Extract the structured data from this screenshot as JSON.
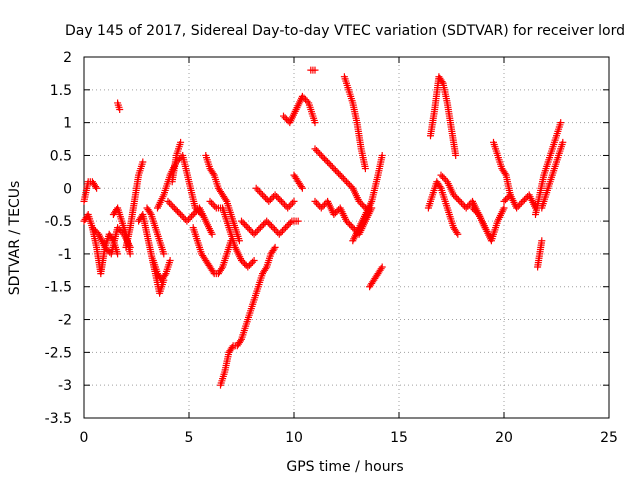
{
  "chart_data": {
    "type": "scatter",
    "title": "Day 145 of 2017, Sidereal Day-to-day VTEC variation (SDTVAR) for receiver lord",
    "xlabel": "GPS time / hours",
    "ylabel": "SDTVAR / TECUs",
    "xlim": [
      0,
      25
    ],
    "ylim": [
      -3.5,
      2
    ],
    "xticks": [
      0,
      5,
      10,
      15,
      20,
      25
    ],
    "xtick_labels": [
      "0",
      "5",
      "10",
      "15",
      "20",
      "25"
    ],
    "yticks": [
      -3.5,
      -3,
      -2.5,
      -2,
      -1.5,
      -1,
      -0.5,
      0,
      0.5,
      1,
      1.5,
      2
    ],
    "ytick_labels": [
      "-3.5",
      "-3",
      "-2.5",
      "-2",
      "-1.5",
      "-1",
      "-0.5",
      "0",
      "0.5",
      "1",
      "1.5",
      "2"
    ],
    "grid": true,
    "marker": "plus",
    "color": "#ff0000",
    "series": [
      {
        "name": "s1",
        "x": [
          0,
          0.2,
          0.4,
          0.6,
          0.8,
          1.0,
          1.2,
          1.4,
          1.6
        ],
        "y": [
          -0.5,
          -0.4,
          -0.6,
          -0.9,
          -1.3,
          -0.9,
          -0.7,
          -0.8,
          -1.0
        ]
      },
      {
        "name": "s2",
        "x": [
          0,
          0.2,
          0.4,
          0.6
        ],
        "y": [
          -0.2,
          0.1,
          0.1,
          0.0
        ]
      },
      {
        "name": "s3",
        "x": [
          0.4,
          0.7,
          1.0,
          1.3,
          1.6,
          1.9,
          2.2
        ],
        "y": [
          -0.6,
          -0.7,
          -0.9,
          -1.0,
          -0.6,
          -0.7,
          -0.9
        ]
      },
      {
        "name": "s4",
        "x": [
          1.4,
          1.6,
          1.8,
          2.0,
          2.2
        ],
        "y": [
          -0.4,
          -0.3,
          -0.5,
          -0.7,
          -1.0
        ]
      },
      {
        "name": "s5",
        "x": [
          1.6,
          1.7
        ],
        "y": [
          1.3,
          1.2
        ]
      },
      {
        "name": "s6",
        "x": [
          2.0,
          2.2,
          2.4,
          2.6,
          2.8
        ],
        "y": [
          -0.9,
          -0.6,
          -0.2,
          0.2,
          0.4
        ]
      },
      {
        "name": "s7",
        "x": [
          2.6,
          2.8,
          3.0,
          3.2,
          3.4,
          3.6,
          3.8
        ],
        "y": [
          -0.5,
          -0.4,
          -0.7,
          -1.0,
          -1.3,
          -1.6,
          -1.4
        ]
      },
      {
        "name": "s8",
        "x": [
          3.0,
          3.2,
          3.4,
          3.6,
          3.8
        ],
        "y": [
          -0.3,
          -0.4,
          -0.6,
          -0.8,
          -1.0
        ]
      },
      {
        "name": "s9",
        "x": [
          3.3,
          3.5,
          3.7,
          3.9,
          4.1
        ],
        "y": [
          -1.1,
          -1.3,
          -1.4,
          -1.3,
          -1.1
        ]
      },
      {
        "name": "s10",
        "x": [
          3.5,
          3.8,
          4.1,
          4.4,
          4.7,
          5.0,
          5.3,
          5.6
        ],
        "y": [
          -0.3,
          -0.1,
          0.2,
          0.4,
          0.5,
          0.1,
          -0.3,
          -0.4
        ]
      },
      {
        "name": "s11",
        "x": [
          4.0,
          4.3,
          4.6,
          4.9,
          5.2,
          5.5,
          5.8,
          6.1
        ],
        "y": [
          -0.2,
          -0.3,
          -0.4,
          -0.5,
          -0.4,
          -0.3,
          -0.5,
          -0.7
        ]
      },
      {
        "name": "s12",
        "x": [
          4.2,
          4.4,
          4.6
        ],
        "y": [
          0.1,
          0.5,
          0.7
        ]
      },
      {
        "name": "s13",
        "x": [
          5.2,
          5.4,
          5.6,
          5.8,
          6.0,
          6.2,
          6.4,
          6.6,
          6.8,
          7.0
        ],
        "y": [
          -0.6,
          -0.8,
          -1.0,
          -1.1,
          -1.2,
          -1.3,
          -1.3,
          -1.2,
          -1.0,
          -0.8
        ]
      },
      {
        "name": "s14",
        "x": [
          5.8,
          6.0,
          6.2,
          6.4,
          6.6,
          6.8,
          7.0,
          7.2,
          7.4
        ],
        "y": [
          0.5,
          0.3,
          0.2,
          0.0,
          -0.1,
          -0.2,
          -0.4,
          -0.6,
          -0.8
        ]
      },
      {
        "name": "s15",
        "x": [
          6.0,
          6.3,
          6.6,
          6.9,
          7.2,
          7.5,
          7.8,
          8.1
        ],
        "y": [
          -0.2,
          -0.3,
          -0.3,
          -0.6,
          -0.9,
          -1.1,
          -1.2,
          -1.1
        ]
      },
      {
        "name": "s16",
        "x": [
          6.5,
          6.7,
          6.9,
          7.1,
          7.3,
          7.5,
          7.7,
          7.9,
          8.1,
          8.3,
          8.5,
          8.7,
          8.9,
          9.1
        ],
        "y": [
          -3.0,
          -2.8,
          -2.5,
          -2.4,
          -2.4,
          -2.3,
          -2.1,
          -1.9,
          -1.7,
          -1.5,
          -1.3,
          -1.2,
          -1.0,
          -0.9
        ]
      },
      {
        "name": "s17",
        "x": [
          7.5,
          7.8,
          8.1,
          8.4,
          8.7,
          9.0,
          9.3,
          9.6,
          9.9,
          10.2
        ],
        "y": [
          -0.5,
          -0.6,
          -0.7,
          -0.6,
          -0.5,
          -0.6,
          -0.7,
          -0.6,
          -0.5,
          -0.5
        ]
      },
      {
        "name": "s18",
        "x": [
          8.2,
          8.5,
          8.8,
          9.1,
          9.4,
          9.7,
          10.0
        ],
        "y": [
          0.0,
          -0.1,
          -0.2,
          -0.1,
          -0.2,
          -0.3,
          -0.2
        ]
      },
      {
        "name": "s19",
        "x": [
          9.5,
          9.8,
          10.1,
          10.4,
          10.7,
          11.0
        ],
        "y": [
          1.1,
          1.0,
          1.2,
          1.4,
          1.3,
          1.0
        ]
      },
      {
        "name": "s20",
        "x": [
          10.0,
          10.2,
          10.4
        ],
        "y": [
          0.2,
          0.1,
          0.0
        ]
      },
      {
        "name": "s21",
        "x": [
          10.8,
          11.0
        ],
        "y": [
          1.8,
          1.8
        ]
      },
      {
        "name": "s22",
        "x": [
          11.0,
          11.3,
          11.6,
          11.9,
          12.2,
          12.5,
          12.8,
          13.1,
          13.4
        ],
        "y": [
          0.6,
          0.5,
          0.4,
          0.3,
          0.2,
          0.1,
          0.0,
          -0.2,
          -0.3
        ]
      },
      {
        "name": "s23",
        "x": [
          11.0,
          11.3,
          11.6,
          11.9,
          12.2,
          12.5,
          12.8,
          13.1,
          13.4,
          13.7
        ],
        "y": [
          -0.2,
          -0.3,
          -0.2,
          -0.4,
          -0.3,
          -0.5,
          -0.6,
          -0.7,
          -0.5,
          -0.3
        ]
      },
      {
        "name": "s24",
        "x": [
          12.4,
          12.6,
          12.8,
          13.0,
          13.2,
          13.4
        ],
        "y": [
          1.7,
          1.5,
          1.3,
          1.0,
          0.6,
          0.3
        ]
      },
      {
        "name": "s25",
        "x": [
          12.8,
          13.1,
          13.4,
          13.7,
          14.0,
          14.2
        ],
        "y": [
          -0.8,
          -0.6,
          -0.4,
          -0.2,
          0.2,
          0.5
        ]
      },
      {
        "name": "s26",
        "x": [
          13.6,
          13.8,
          14.0,
          14.2
        ],
        "y": [
          -1.5,
          -1.4,
          -1.3,
          -1.2
        ]
      },
      {
        "name": "s27",
        "x": [
          16.5,
          16.7,
          16.9,
          17.1,
          17.3,
          17.5,
          17.7
        ],
        "y": [
          0.8,
          1.2,
          1.7,
          1.6,
          1.3,
          0.9,
          0.5
        ]
      },
      {
        "name": "s28",
        "x": [
          16.4,
          16.6,
          16.8,
          17.0,
          17.2,
          17.4,
          17.6,
          17.8
        ],
        "y": [
          -0.3,
          -0.1,
          0.1,
          0.0,
          -0.2,
          -0.4,
          -0.6,
          -0.7
        ]
      },
      {
        "name": "s29",
        "x": [
          17.0,
          17.3,
          17.6,
          17.9,
          18.2,
          18.5,
          18.8,
          19.1
        ],
        "y": [
          0.2,
          0.1,
          -0.1,
          -0.2,
          -0.3,
          -0.2,
          -0.4,
          -0.6
        ]
      },
      {
        "name": "s30",
        "x": [
          18.5,
          18.8,
          19.1,
          19.4,
          19.7,
          20.0
        ],
        "y": [
          -0.3,
          -0.4,
          -0.6,
          -0.8,
          -0.5,
          -0.3
        ]
      },
      {
        "name": "s31",
        "x": [
          19.5,
          19.7,
          19.9,
          20.1,
          20.3
        ],
        "y": [
          0.7,
          0.5,
          0.3,
          0.2,
          -0.1
        ]
      },
      {
        "name": "s32",
        "x": [
          20.0,
          20.3,
          20.6,
          20.9,
          21.2,
          21.5
        ],
        "y": [
          -0.2,
          -0.1,
          -0.3,
          -0.2,
          -0.1,
          -0.3
        ]
      },
      {
        "name": "s33",
        "x": [
          21.5,
          21.7,
          21.9,
          22.1,
          22.3,
          22.5,
          22.7
        ],
        "y": [
          -0.4,
          -0.1,
          0.2,
          0.4,
          0.6,
          0.8,
          1.0
        ]
      },
      {
        "name": "s34",
        "x": [
          21.6,
          21.8
        ],
        "y": [
          -1.2,
          -0.8
        ]
      },
      {
        "name": "s35",
        "x": [
          21.8,
          22.0,
          22.2,
          22.4,
          22.6,
          22.8
        ],
        "y": [
          -0.3,
          -0.1,
          0.1,
          0.3,
          0.5,
          0.7
        ]
      }
    ]
  }
}
